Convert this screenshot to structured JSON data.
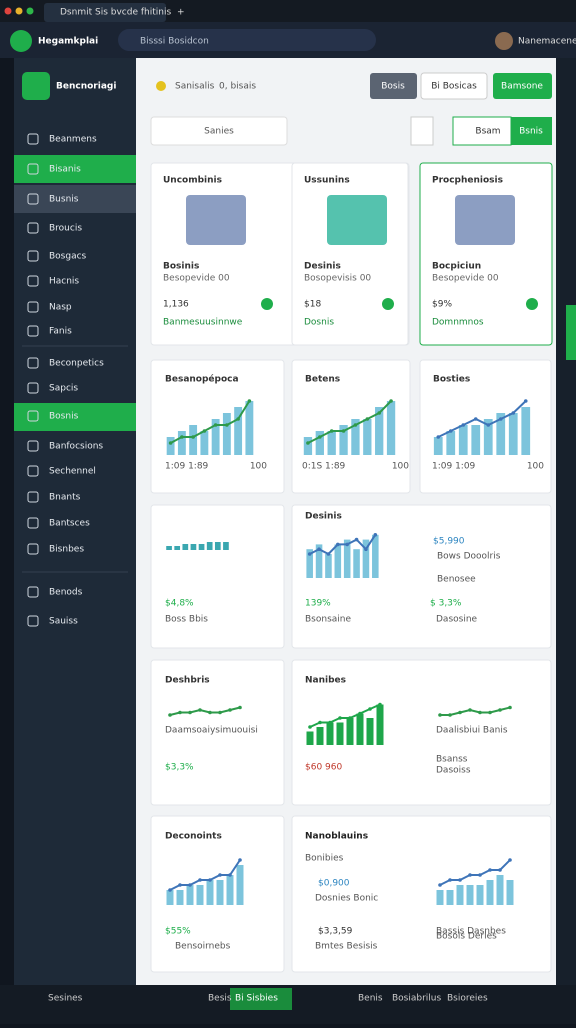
{
  "browser": {
    "tab": "Dsnmit Sis bvcde fhitinis",
    "new_tab": "+"
  },
  "header": {
    "app_name": "Hegamkplai",
    "search": "Bisssi Bosidcon",
    "user": "Nanemacenes"
  },
  "sidebar": {
    "brand": "Bencnoriagi",
    "items": [
      "Beanmens",
      "Bisanis",
      "Busnis",
      "Broucis",
      "Bosgacs",
      "Hacnis",
      "Nasp",
      "Fanis",
      "Beconpetics",
      "Sapcis",
      "Bosnis",
      "Banfocsions",
      "Sechennel",
      "Bnants",
      "Bantsces",
      "Bisnbes",
      "Benods",
      "Sauiss"
    ]
  },
  "toolbar": {
    "status": "Sanisalis",
    "count": "0, bisais",
    "buttons": [
      "Bosis",
      "Bi Bosicas",
      "Bamsone"
    ],
    "search": "Sanies",
    "tabs": [
      "Bsam",
      "Bsnis"
    ]
  },
  "cards": [
    {
      "title": "Uncombinis",
      "label": "Bosinis",
      "sub": "Besopevide 00",
      "value": "1,136",
      "note": "Banmesuusinnwe"
    },
    {
      "title": "Ussunins",
      "label": "Desinis",
      "sub": "Bosopevisis 00",
      "value": "$18",
      "note": "Dosnis"
    },
    {
      "title": "Procpheniosis",
      "label": "Bocpiciun",
      "sub": "Besopevide 00",
      "value": "$9%",
      "note": "Domnmnos"
    }
  ],
  "charts": [
    {
      "type": "bar",
      "title": "Besanopépoca",
      "values": [
        3,
        4,
        5,
        4,
        6,
        7,
        8,
        9
      ],
      "line": [
        2,
        3,
        3,
        4,
        5,
        5,
        6,
        9
      ],
      "ylim": [
        0,
        10
      ],
      "color": "#7cc4dc",
      "line_color": "#2e9a4a",
      "labels": [
        "1:09 1:89",
        "100"
      ]
    },
    {
      "type": "bar",
      "title": "Betens",
      "values": [
        3,
        4,
        4,
        5,
        6,
        6,
        8,
        9
      ],
      "line": [
        2,
        3,
        4,
        4,
        5,
        6,
        7,
        9
      ],
      "ylim": [
        0,
        10
      ],
      "color": "#7cc4dc",
      "line_color": "#2e9a4a",
      "labels": [
        "0:1S 1:89",
        "100"
      ]
    },
    {
      "type": "bar",
      "title": "Bosties",
      "values": [
        3,
        4,
        5,
        5,
        6,
        7,
        7,
        8
      ],
      "line": [
        3,
        4,
        5,
        6,
        5,
        6,
        7,
        9
      ],
      "ylim": [
        0,
        10
      ],
      "color": "#7cc4dc",
      "line_color": "#3e74b8",
      "labels": [
        "1:09 1:09",
        "100"
      ]
    },
    {
      "type": "bar",
      "values": [
        2,
        2,
        3,
        3,
        3,
        4,
        4,
        4
      ],
      "ylim": [
        0,
        10
      ],
      "color": "#3aa7b0",
      "value": "$4,8%",
      "note": "Boss Bbis"
    },
    {
      "type": "bar",
      "title": "Desinis",
      "values": [
        6,
        7,
        5,
        7,
        8,
        6,
        8,
        9
      ],
      "line": [
        5,
        6,
        5,
        7,
        7,
        8,
        6,
        9
      ],
      "ylim": [
        0,
        10
      ],
      "color": "#7cc4dc",
      "line_color": "#3e74b8",
      "value": "139%",
      "note": "Bsonsaine"
    },
    {
      "type": "line",
      "title": "Deshbris",
      "line": [
        4,
        5,
        5,
        6,
        5,
        5,
        6,
        7
      ],
      "ylim": [
        0,
        10
      ],
      "line_color": "#2e9a4a",
      "value": "$3,3%",
      "note": "Daamsoaiysimuouisi"
    },
    {
      "type": "bar",
      "title": "Nanibes",
      "values": [
        3,
        4,
        5,
        5,
        6,
        7,
        6,
        9
      ],
      "line": [
        4,
        5,
        5,
        6,
        6,
        7,
        8,
        9
      ],
      "ylim": [
        0,
        10
      ],
      "color": "#1ea64a",
      "line_color": "#1ea64a",
      "value": "$60 960"
    },
    {
      "type": "line",
      "line": [
        4,
        4,
        5,
        6,
        5,
        5,
        6,
        7
      ],
      "ylim": [
        0,
        10
      ],
      "line_color": "#2e9a4a",
      "note": "Daalisbiui Banis"
    },
    {
      "type": "bar",
      "title": "Deconoints",
      "values": [
        3,
        3,
        4,
        4,
        5,
        5,
        6,
        8
      ],
      "line": [
        3,
        4,
        4,
        5,
        5,
        6,
        6,
        9
      ],
      "ylim": [
        0,
        10
      ],
      "color": "#7cc4dc",
      "line_color": "#3e74b8",
      "value": "$55%",
      "note": "Bensoirnebs"
    },
    {
      "type": "bar",
      "values": [
        3,
        3,
        4,
        4,
        4,
        5,
        6,
        5
      ],
      "line": [
        4,
        5,
        5,
        6,
        6,
        7,
        7,
        9
      ],
      "ylim": [
        0,
        10
      ],
      "color": "#7cc4dc",
      "line_color": "#3e74b8",
      "note": "Bosols Deries"
    }
  ],
  "stats": {
    "row3": [
      "$5,990",
      "Bows Dooolris",
      "Benosee",
      "$ 3,3%",
      "Dasosine"
    ],
    "row4": [
      "Bsanss",
      "Dasoiss"
    ],
    "row5": [
      "Nanoblauins",
      "Bonibies",
      "$0,900",
      "Dosnies Bonic",
      "$3,3,59",
      "Bmtes Besisis",
      "Bassis Dasnbes"
    ]
  },
  "footer": {
    "left": "Sesines",
    "center": "Besis",
    "active": "Bi Sisbies",
    "right": [
      "Benis",
      "Bosiabrilus",
      "Bsioreies"
    ]
  }
}
